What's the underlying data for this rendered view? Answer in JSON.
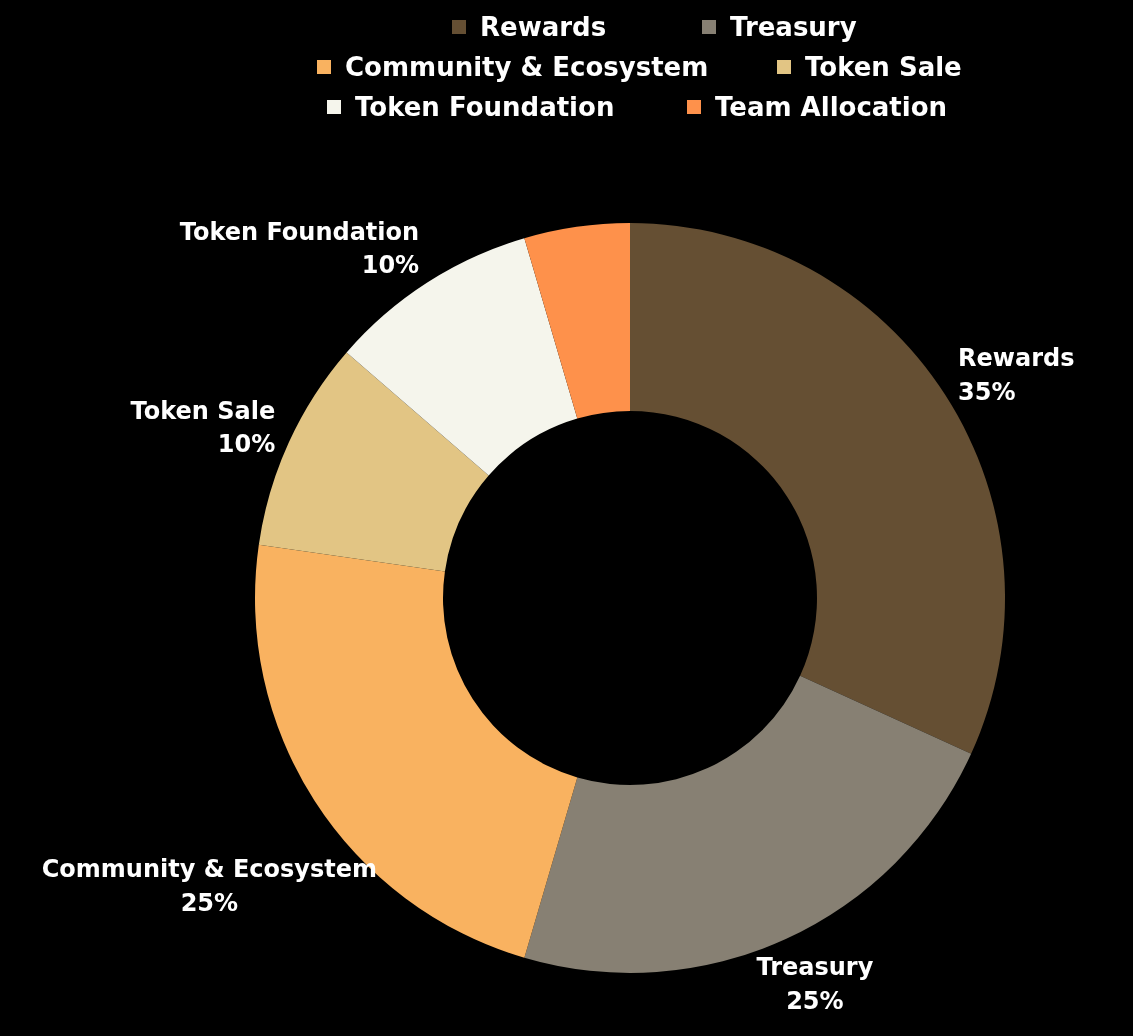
{
  "chart_data": {
    "type": "donut",
    "categories": [
      "Rewards",
      "Treasury",
      "Community & Ecosystem",
      "Token Sale",
      "Token Foundation",
      "Team Allocation"
    ],
    "values": [
      35,
      25,
      25,
      10,
      10,
      5
    ],
    "colors": [
      "#654f33",
      "#878073",
      "#f9b260",
      "#e2c584",
      "#f5f5ec",
      "#fe914b"
    ],
    "value_labels": [
      "35%",
      "25%",
      "25%",
      "10%",
      "10%",
      null
    ],
    "legend": "top"
  }
}
